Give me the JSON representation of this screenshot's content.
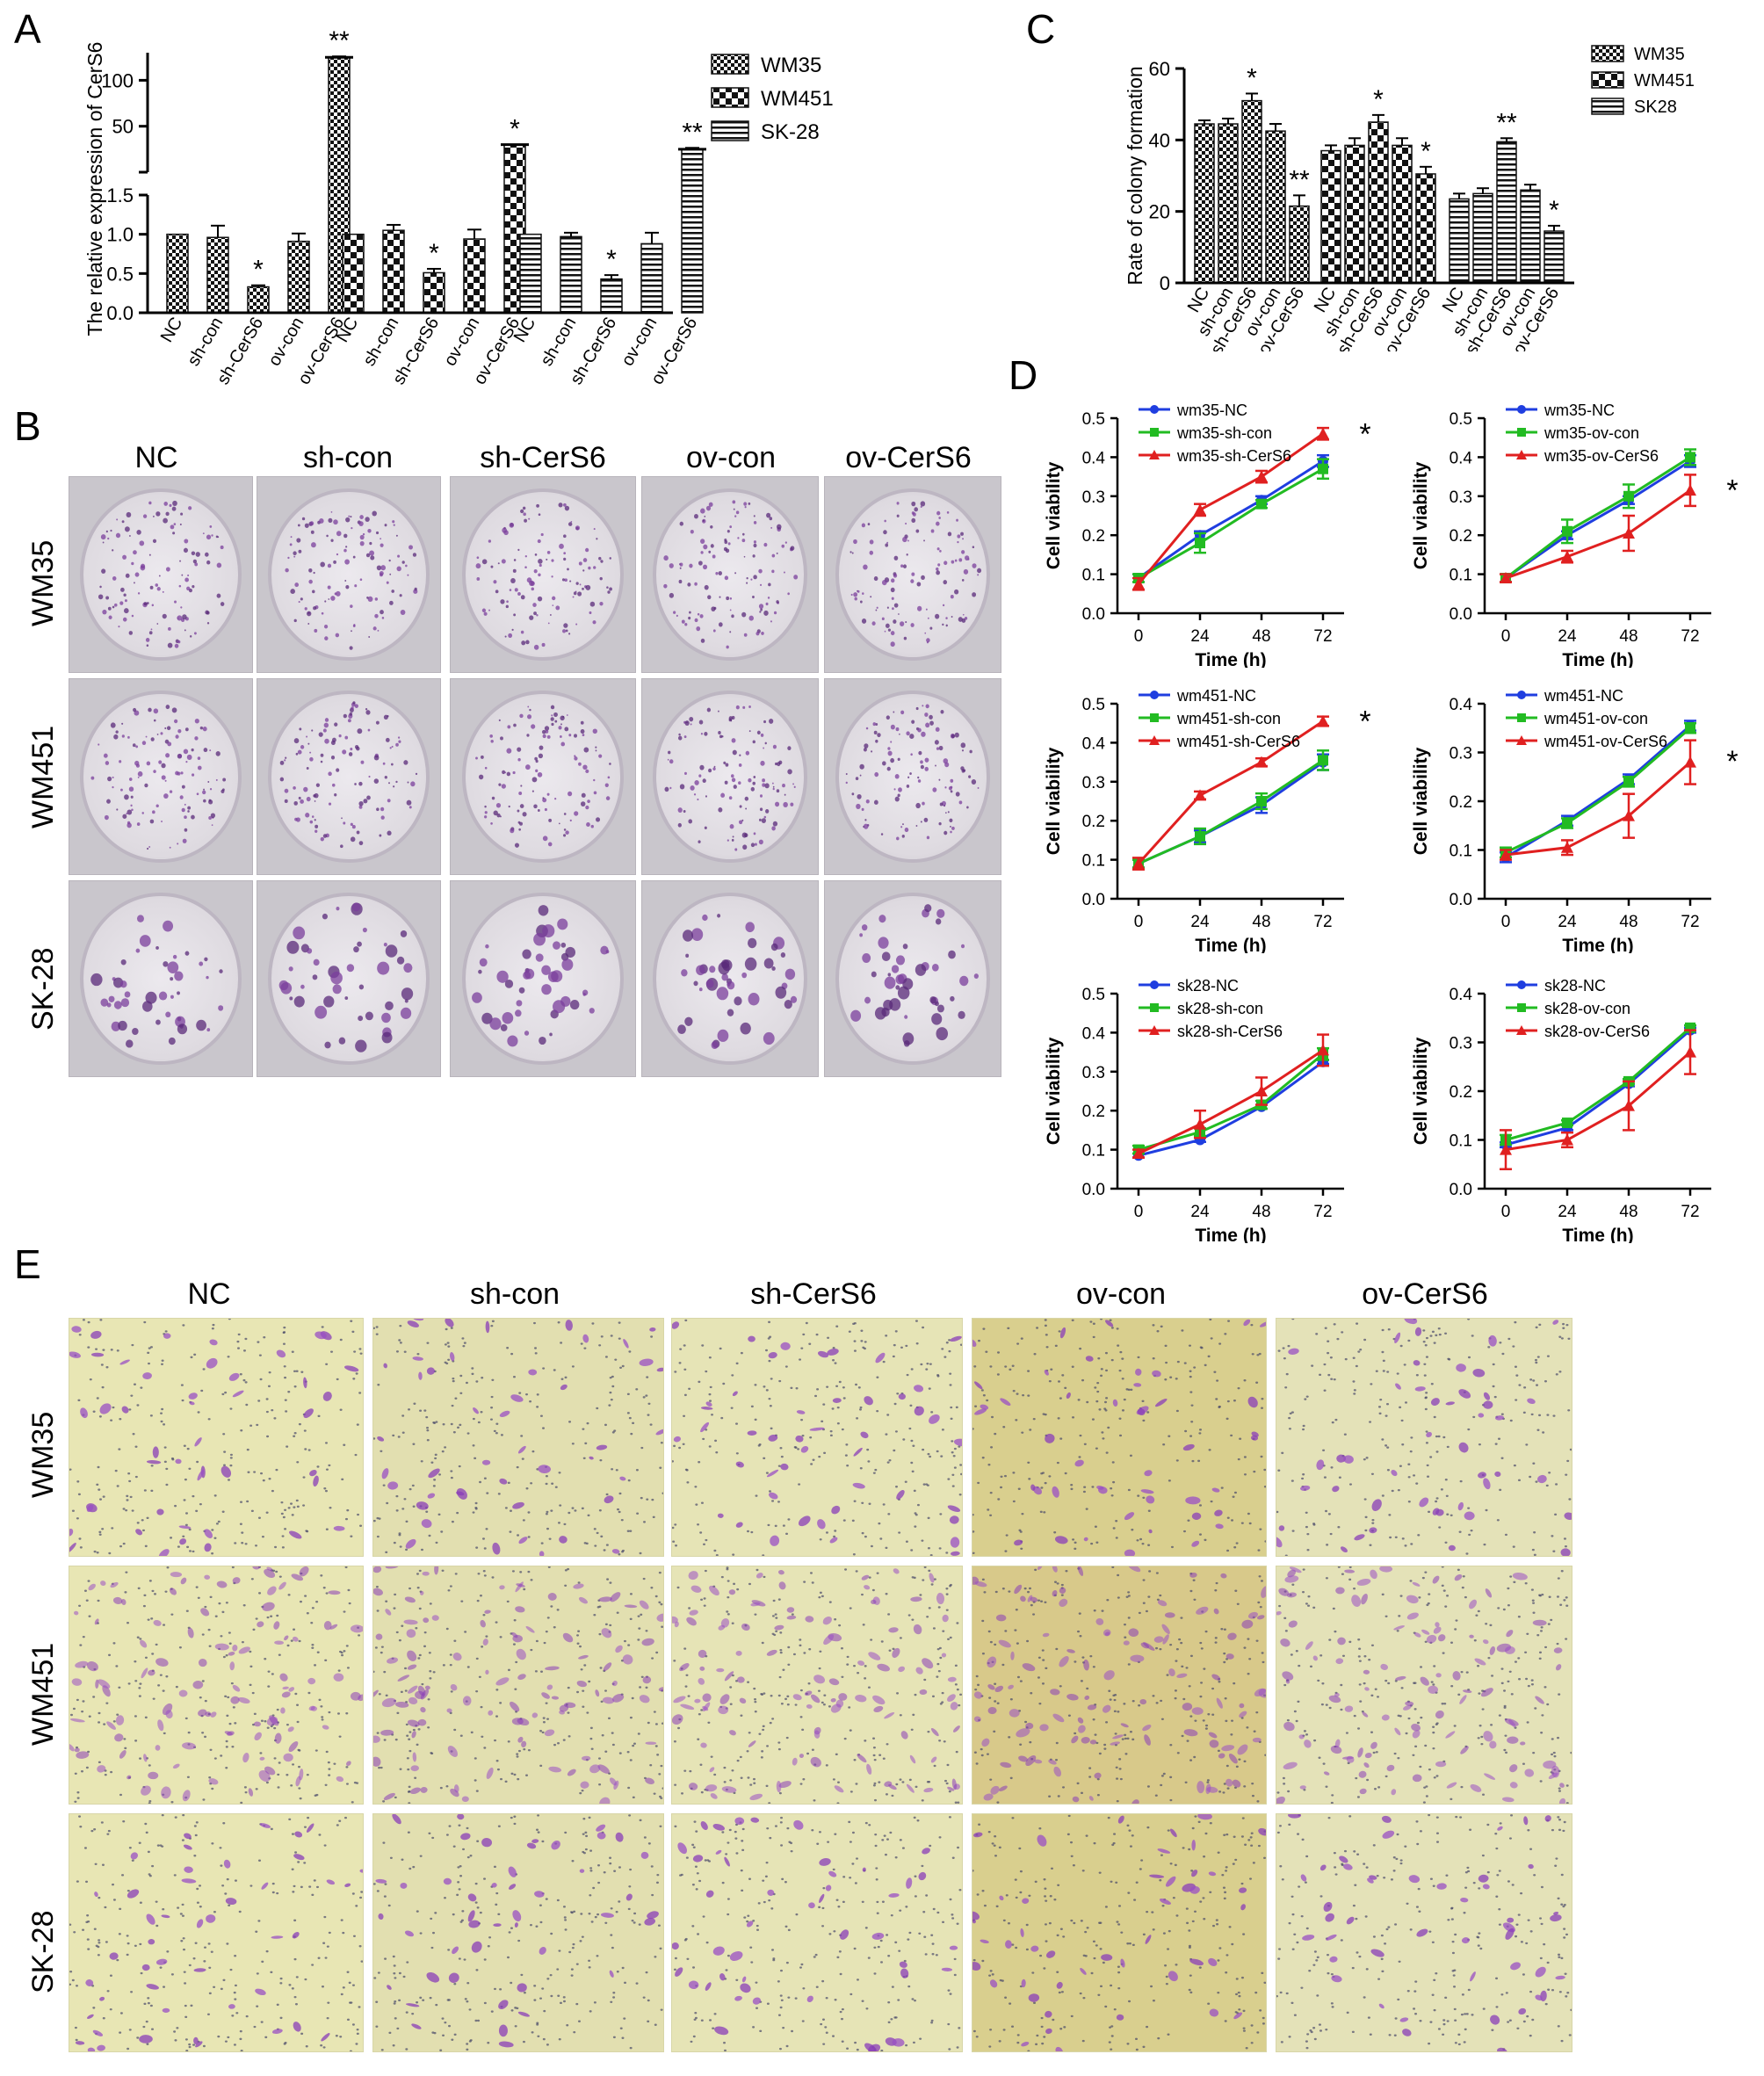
{
  "panel_letters": {
    "A": "A",
    "B": "B",
    "C": "C",
    "D": "D",
    "E": "E"
  },
  "colors": {
    "WM35_fill": "#444444",
    "NC": "#1f3ee0",
    "con": "#22bb22",
    "CerS6": "#e02020"
  },
  "chart_data": [
    {
      "id": "A",
      "type": "bar",
      "ylabel": "The relative expression of CerS6",
      "categories": [
        "NC",
        "sh-con",
        "sh-CerS6",
        "ov-con",
        "ov-CerS6"
      ],
      "series": [
        {
          "name": "WM35",
          "values": [
            1.0,
            0.96,
            0.33,
            0.91,
            125
          ],
          "errors": [
            0,
            0.15,
            0.02,
            0.1,
            1
          ],
          "stars": [
            "",
            "",
            "*",
            "",
            "**"
          ]
        },
        {
          "name": "WM451",
          "values": [
            1.0,
            1.05,
            0.51,
            0.94,
            30
          ],
          "errors": [
            0,
            0.07,
            0.05,
            0.12,
            0
          ],
          "stars": [
            "",
            "",
            "*",
            "",
            "*"
          ]
        },
        {
          "name": "SK-28",
          "values": [
            1.0,
            0.97,
            0.43,
            0.88,
            25
          ],
          "errors": [
            0,
            0.05,
            0.05,
            0.14,
            1.5
          ],
          "stars": [
            "",
            "",
            "*",
            "",
            "**"
          ]
        }
      ],
      "y_ticks_lower": [
        "0.0",
        "0.5",
        "1.0",
        "1.5"
      ],
      "y_ticks_upper": [
        "50",
        "100"
      ],
      "ylim_lower": [
        0,
        1.5
      ],
      "ylim_upper": [
        0,
        130
      ],
      "legend": "right"
    },
    {
      "id": "C",
      "type": "bar",
      "ylabel": "Rate of colony formation",
      "categories": [
        "NC",
        "sh-con",
        "sh-CerS6",
        "ov-con",
        "ov-CerS6"
      ],
      "series": [
        {
          "name": "WM35",
          "values": [
            44.5,
            44.5,
            51,
            42.5,
            21.5
          ],
          "errors": [
            1,
            1.5,
            2,
            2,
            3
          ],
          "stars": [
            "",
            "",
            "*",
            "",
            "**"
          ]
        },
        {
          "name": "WM451",
          "values": [
            37,
            38.5,
            45,
            38.5,
            30.5
          ],
          "errors": [
            1.5,
            2,
            2,
            2,
            2
          ],
          "stars": [
            "",
            "",
            "*",
            "",
            "*"
          ]
        },
        {
          "name": "SK28",
          "values": [
            23.5,
            25,
            39.5,
            26,
            14.5
          ],
          "errors": [
            1.5,
            1.5,
            1,
            1.5,
            1.5
          ],
          "stars": [
            "",
            "",
            "**",
            "",
            "*"
          ]
        }
      ],
      "y_ticks": [
        "0",
        "20",
        "40",
        "60"
      ],
      "ylim": [
        0,
        60
      ],
      "legend": "right"
    },
    {
      "id": "D1",
      "type": "line",
      "xlabel": "Time (h)",
      "ylabel": "Cell viability",
      "x": [
        0,
        24,
        48,
        72
      ],
      "y_ticks": [
        "0.0",
        "0.1",
        "0.2",
        "0.3",
        "0.4",
        "0.5"
      ],
      "ylim": [
        0,
        0.5
      ],
      "star": "*",
      "series": [
        {
          "name": "wm35-NC",
          "values": [
            0.09,
            0.2,
            0.29,
            0.39
          ],
          "errors": [
            0.01,
            0.01,
            0.01,
            0.015
          ]
        },
        {
          "name": "wm35-sh-con",
          "values": [
            0.09,
            0.18,
            0.28,
            0.37
          ],
          "errors": [
            0.01,
            0.025,
            0.01,
            0.025
          ]
        },
        {
          "name": "wm35-sh-CerS6",
          "values": [
            0.075,
            0.265,
            0.35,
            0.46
          ],
          "errors": [
            0.015,
            0.015,
            0.015,
            0.015
          ]
        }
      ]
    },
    {
      "id": "D2",
      "type": "line",
      "xlabel": "Time (h)",
      "ylabel": "Cell viability",
      "x": [
        0,
        24,
        48,
        72
      ],
      "y_ticks": [
        "0.0",
        "0.1",
        "0.2",
        "0.3",
        "0.4",
        "0.5"
      ],
      "ylim": [
        0,
        0.5
      ],
      "star": "*",
      "series": [
        {
          "name": "wm35-NC",
          "values": [
            0.09,
            0.2,
            0.29,
            0.39
          ],
          "errors": [
            0.01,
            0.01,
            0.01,
            0.015
          ]
        },
        {
          "name": "wm35-ov-con",
          "values": [
            0.09,
            0.21,
            0.3,
            0.4
          ],
          "errors": [
            0.01,
            0.03,
            0.03,
            0.02
          ]
        },
        {
          "name": "wm35-ov-CerS6",
          "values": [
            0.09,
            0.145,
            0.205,
            0.315
          ],
          "errors": [
            0.01,
            0.015,
            0.045,
            0.04
          ]
        }
      ]
    },
    {
      "id": "D3",
      "type": "line",
      "xlabel": "Time (h)",
      "ylabel": "Cell viability",
      "x": [
        0,
        24,
        48,
        72
      ],
      "y_ticks": [
        "0.0",
        "0.1",
        "0.2",
        "0.3",
        "0.4",
        "0.5"
      ],
      "ylim": [
        0,
        0.5
      ],
      "star": "*",
      "series": [
        {
          "name": "wm451-NC",
          "values": [
            0.09,
            0.16,
            0.24,
            0.35
          ],
          "errors": [
            0.01,
            0.015,
            0.02,
            0.02
          ]
        },
        {
          "name": "wm451-sh-con",
          "values": [
            0.09,
            0.16,
            0.25,
            0.355
          ],
          "errors": [
            0.01,
            0.02,
            0.02,
            0.025
          ]
        },
        {
          "name": "wm451-sh-CerS6",
          "values": [
            0.09,
            0.265,
            0.35,
            0.455
          ],
          "errors": [
            0.015,
            0.01,
            0.01,
            0.012
          ]
        }
      ]
    },
    {
      "id": "D4",
      "type": "line",
      "xlabel": "Time (h)",
      "ylabel": "Cell viability",
      "x": [
        0,
        24,
        48,
        72
      ],
      "y_ticks": [
        "0.0",
        "0.1",
        "0.2",
        "0.3",
        "0.4"
      ],
      "ylim": [
        0,
        0.4
      ],
      "star": "*",
      "series": [
        {
          "name": "wm451-NC",
          "values": [
            0.085,
            0.16,
            0.245,
            0.355
          ],
          "errors": [
            0.01,
            0.01,
            0.01,
            0.01
          ]
        },
        {
          "name": "wm451-ov-con",
          "values": [
            0.095,
            0.155,
            0.24,
            0.35
          ],
          "errors": [
            0.01,
            0.01,
            0.01,
            0.01
          ]
        },
        {
          "name": "wm451-ov-CerS6",
          "values": [
            0.09,
            0.105,
            0.17,
            0.28
          ],
          "errors": [
            0.01,
            0.015,
            0.045,
            0.045
          ]
        }
      ]
    },
    {
      "id": "D5",
      "type": "line",
      "xlabel": "Time (h)",
      "ylabel": "Cell viability",
      "x": [
        0,
        24,
        48,
        72
      ],
      "y_ticks": [
        "0.0",
        "0.1",
        "0.2",
        "0.3",
        "0.4",
        "0.5"
      ],
      "ylim": [
        0,
        0.5
      ],
      "star": "",
      "series": [
        {
          "name": "sk28-NC",
          "values": [
            0.085,
            0.125,
            0.21,
            0.325
          ],
          "errors": [
            0.005,
            0.005,
            0.005,
            0.005
          ]
        },
        {
          "name": "sk28-sh-con",
          "values": [
            0.1,
            0.145,
            0.215,
            0.345
          ],
          "errors": [
            0.01,
            0.01,
            0.01,
            0.015
          ]
        },
        {
          "name": "sk28-sh-CerS6",
          "values": [
            0.09,
            0.165,
            0.25,
            0.355
          ],
          "errors": [
            0.01,
            0.035,
            0.035,
            0.04
          ]
        }
      ]
    },
    {
      "id": "D6",
      "type": "line",
      "xlabel": "Time (h)",
      "ylabel": "Cell viability",
      "x": [
        0,
        24,
        48,
        72
      ],
      "y_ticks": [
        "0.0",
        "0.1",
        "0.2",
        "0.3",
        "0.4"
      ],
      "ylim": [
        0,
        0.4
      ],
      "star": "",
      "series": [
        {
          "name": "sk28-NC",
          "values": [
            0.09,
            0.125,
            0.215,
            0.325
          ],
          "errors": [
            0.005,
            0.005,
            0.005,
            0.005
          ]
        },
        {
          "name": "sk28-ov-con",
          "values": [
            0.1,
            0.135,
            0.22,
            0.33
          ],
          "errors": [
            0.01,
            0.005,
            0.005,
            0.005
          ]
        },
        {
          "name": "sk28-ov-CerS6",
          "values": [
            0.08,
            0.1,
            0.17,
            0.28
          ],
          "errors": [
            0.04,
            0.015,
            0.05,
            0.045
          ]
        }
      ]
    }
  ],
  "panel_B": {
    "columns": [
      "NC",
      "sh-con",
      "sh-CerS6",
      "ov-con",
      "ov-CerS6"
    ],
    "rows": [
      "WM35",
      "WM451",
      "SK-28"
    ]
  },
  "panel_E": {
    "columns": [
      "NC",
      "sh-con",
      "sh-CerS6",
      "ov-con",
      "ov-CerS6"
    ],
    "rows": [
      "WM35",
      "WM451",
      "SK-28"
    ]
  }
}
